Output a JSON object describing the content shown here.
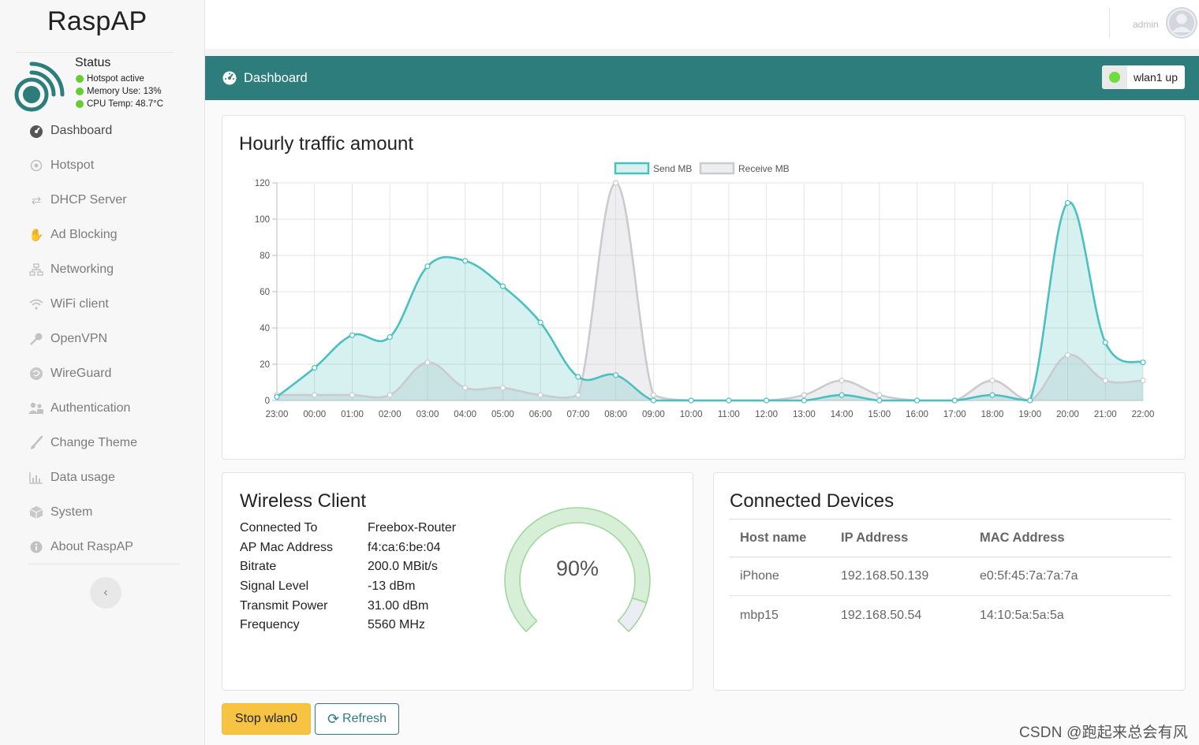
{
  "app": {
    "brand": "RaspAP"
  },
  "topbar": {
    "user": "admin"
  },
  "status": {
    "title": "Status",
    "lines": [
      "Hotspot active",
      "Memory Use: 13%",
      "CPU Temp: 48.7°C"
    ]
  },
  "nav": [
    {
      "label": "Dashboard",
      "icon": "dashboard-icon",
      "active": true
    },
    {
      "label": "Hotspot",
      "icon": "hotspot-icon"
    },
    {
      "label": "DHCP Server",
      "icon": "exchange-icon"
    },
    {
      "label": "Ad Blocking",
      "icon": "hand-icon"
    },
    {
      "label": "Networking",
      "icon": "network-icon"
    },
    {
      "label": "WiFi client",
      "icon": "wifi-icon"
    },
    {
      "label": "OpenVPN",
      "icon": "key-icon"
    },
    {
      "label": "WireGuard",
      "icon": "wireguard-icon"
    },
    {
      "label": "Authentication",
      "icon": "users-icon"
    },
    {
      "label": "Change Theme",
      "icon": "brush-icon"
    },
    {
      "label": "Data usage",
      "icon": "chart-icon"
    },
    {
      "label": "System",
      "icon": "cube-icon"
    },
    {
      "label": "About RaspAP",
      "icon": "info-icon"
    }
  ],
  "header": {
    "title": "Dashboard",
    "badge": "wlan1 up"
  },
  "traffic": {
    "title": "Hourly traffic amount"
  },
  "chart_data": {
    "type": "area",
    "title": "Hourly traffic amount",
    "x": [
      "23:00",
      "00:00",
      "01:00",
      "02:00",
      "03:00",
      "04:00",
      "05:00",
      "06:00",
      "07:00",
      "08:00",
      "09:00",
      "10:00",
      "11:00",
      "12:00",
      "13:00",
      "14:00",
      "15:00",
      "16:00",
      "17:00",
      "18:00",
      "19:00",
      "20:00",
      "21:00",
      "22:00"
    ],
    "series": [
      {
        "name": "Send MB",
        "color": "#4bc0c0",
        "values": [
          2,
          18,
          36,
          35,
          74,
          77,
          63,
          43,
          13,
          14,
          0,
          0,
          0,
          0,
          0,
          3,
          0,
          0,
          0,
          3,
          0,
          109,
          32,
          21
        ]
      },
      {
        "name": "Receive MB",
        "color": "#c9cbcf",
        "values": [
          3,
          3,
          3,
          3,
          21,
          7,
          7,
          3,
          3,
          120,
          3,
          0,
          0,
          0,
          3,
          11,
          3,
          0,
          0,
          11,
          0,
          25,
          11,
          11
        ]
      }
    ],
    "ylim": [
      0,
      120
    ],
    "yticks": [
      0,
      20,
      40,
      60,
      80,
      100,
      120
    ],
    "legend": "top-center",
    "grid": true
  },
  "wireless": {
    "title": "Wireless Client",
    "rows": [
      {
        "k": "Connected To",
        "v": "Freebox-Router"
      },
      {
        "k": "AP Mac Address",
        "v": "f4:ca:6:be:04"
      },
      {
        "k": "Bitrate",
        "v": "200.0 MBit/s"
      },
      {
        "k": "Signal Level",
        "v": "-13 dBm"
      },
      {
        "k": "Transmit Power",
        "v": "31.00 dBm"
      },
      {
        "k": "Frequency",
        "v": "5560 MHz"
      }
    ],
    "gauge": {
      "label": "90%",
      "value": 0.9,
      "color": "#a6dca6"
    }
  },
  "devices": {
    "title": "Connected Devices",
    "headers": [
      "Host name",
      "IP Address",
      "MAC Address"
    ],
    "rows": [
      [
        "iPhone",
        "192.168.50.139",
        "e0:5f:45:7a:7a:7a"
      ],
      [
        "mbp15",
        "192.168.50.54",
        "14:10:5a:5a:5a"
      ]
    ]
  },
  "buttons": {
    "stop": "Stop wlan0",
    "refresh": "Refresh"
  },
  "watermark": "CSDN @跑起来总会有风",
  "colors": {
    "accent": "#2e7d7d",
    "warning": "#f6c343",
    "ok": "#66cc33"
  }
}
